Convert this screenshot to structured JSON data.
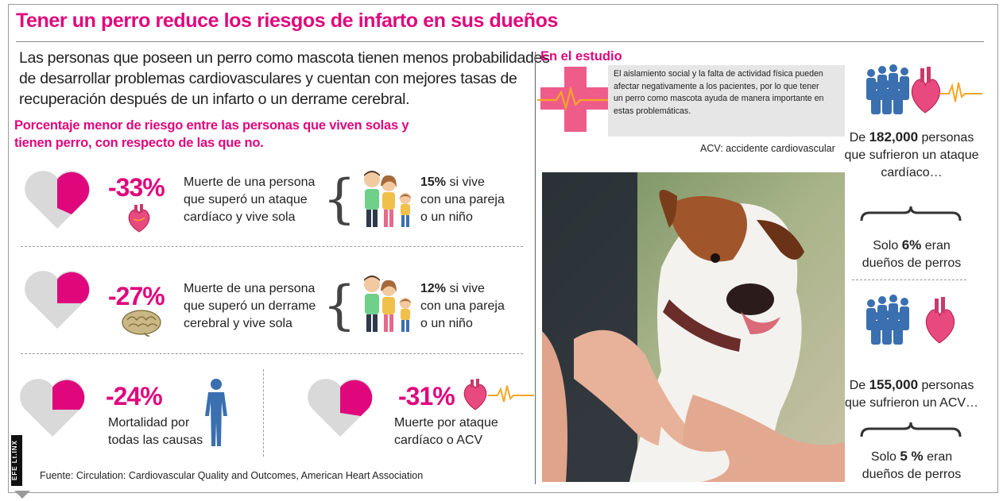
{
  "title": "Tener un perro reduce los riesgos de infarto en sus dueños",
  "intro": [
    "Las personas que poseen un perro como mascota tienen menos probabilidades",
    "de desarrollar problemas cardiovasculares y cuentan con mejores tasas de",
    "recuperación después de un infarto o un derrame cerebral."
  ],
  "subhead": [
    "Porcentaje menor de riesgo entre las personas que viven solas y",
    "tienen perro, con respecto de las que no."
  ],
  "stats": [
    {
      "value": "-33%",
      "fill_fraction": 0.33,
      "desc": [
        "Muerte de una persona",
        "que superó un ataque",
        "cardíaco y vive sola"
      ],
      "icon": "heart-organ-icon"
    },
    {
      "value": "-27%",
      "fill_fraction": 0.27,
      "desc": [
        "Muerte de una persona",
        "que superó un derrame",
        "cerebral y vive sola"
      ],
      "icon": "brain-icon"
    },
    {
      "value": "-24%",
      "fill_fraction": 0.24,
      "desc": [
        "Mortalidad por",
        "todas las causas"
      ],
      "icon": "human-body-icon"
    },
    {
      "value": "-31%",
      "fill_fraction": 0.31,
      "desc": [
        "Muerte por ataque",
        "cardíaco o ACV"
      ],
      "icon": "heart-pulse-icon"
    }
  ],
  "family_notes": [
    {
      "value": "15%",
      "rest": " si vive",
      "lines": [
        "con una pareja",
        "o un niño"
      ]
    },
    {
      "value": "12%",
      "rest": " si vive",
      "lines": [
        "con una pareja",
        "o un niño"
      ]
    }
  ],
  "source": "Fuente: Circulation: Cardiovascular Quality and Outcomes, American Heart Association",
  "credit": "EFE Lt.INX",
  "study": {
    "title": "En el estudio",
    "text": [
      "El aislamiento social y la falta de actividad física pueden",
      "afectar negativamente a los pacientes, por lo que tener",
      "un perro como mascota ayuda de manera importante en",
      "estas problemáticas."
    ],
    "acv_note": "ACV: accidente cardiovascular"
  },
  "right": {
    "block1": {
      "pre": "De ",
      "number": "182,000",
      "post": " personas",
      "lines": [
        "que sufrieron un ataque",
        "cardíaco…"
      ]
    },
    "result1": {
      "pre": "Solo ",
      "number": "6%",
      "post": "  eran",
      "line2": "dueños de perros"
    },
    "block2": {
      "pre": "De ",
      "number": "155,000",
      "post": " personas",
      "lines": [
        "que sufrieron un ACV…"
      ]
    },
    "result2": {
      "pre": "Solo ",
      "number": "5 %",
      "post": " eran",
      "line2": "dueños de perros"
    }
  },
  "colors": {
    "accent": "#e0077d",
    "heart_grey": "#d9d9d9",
    "people_blue": "#3a6fb0",
    "pulse_orange": "#f5a623"
  }
}
